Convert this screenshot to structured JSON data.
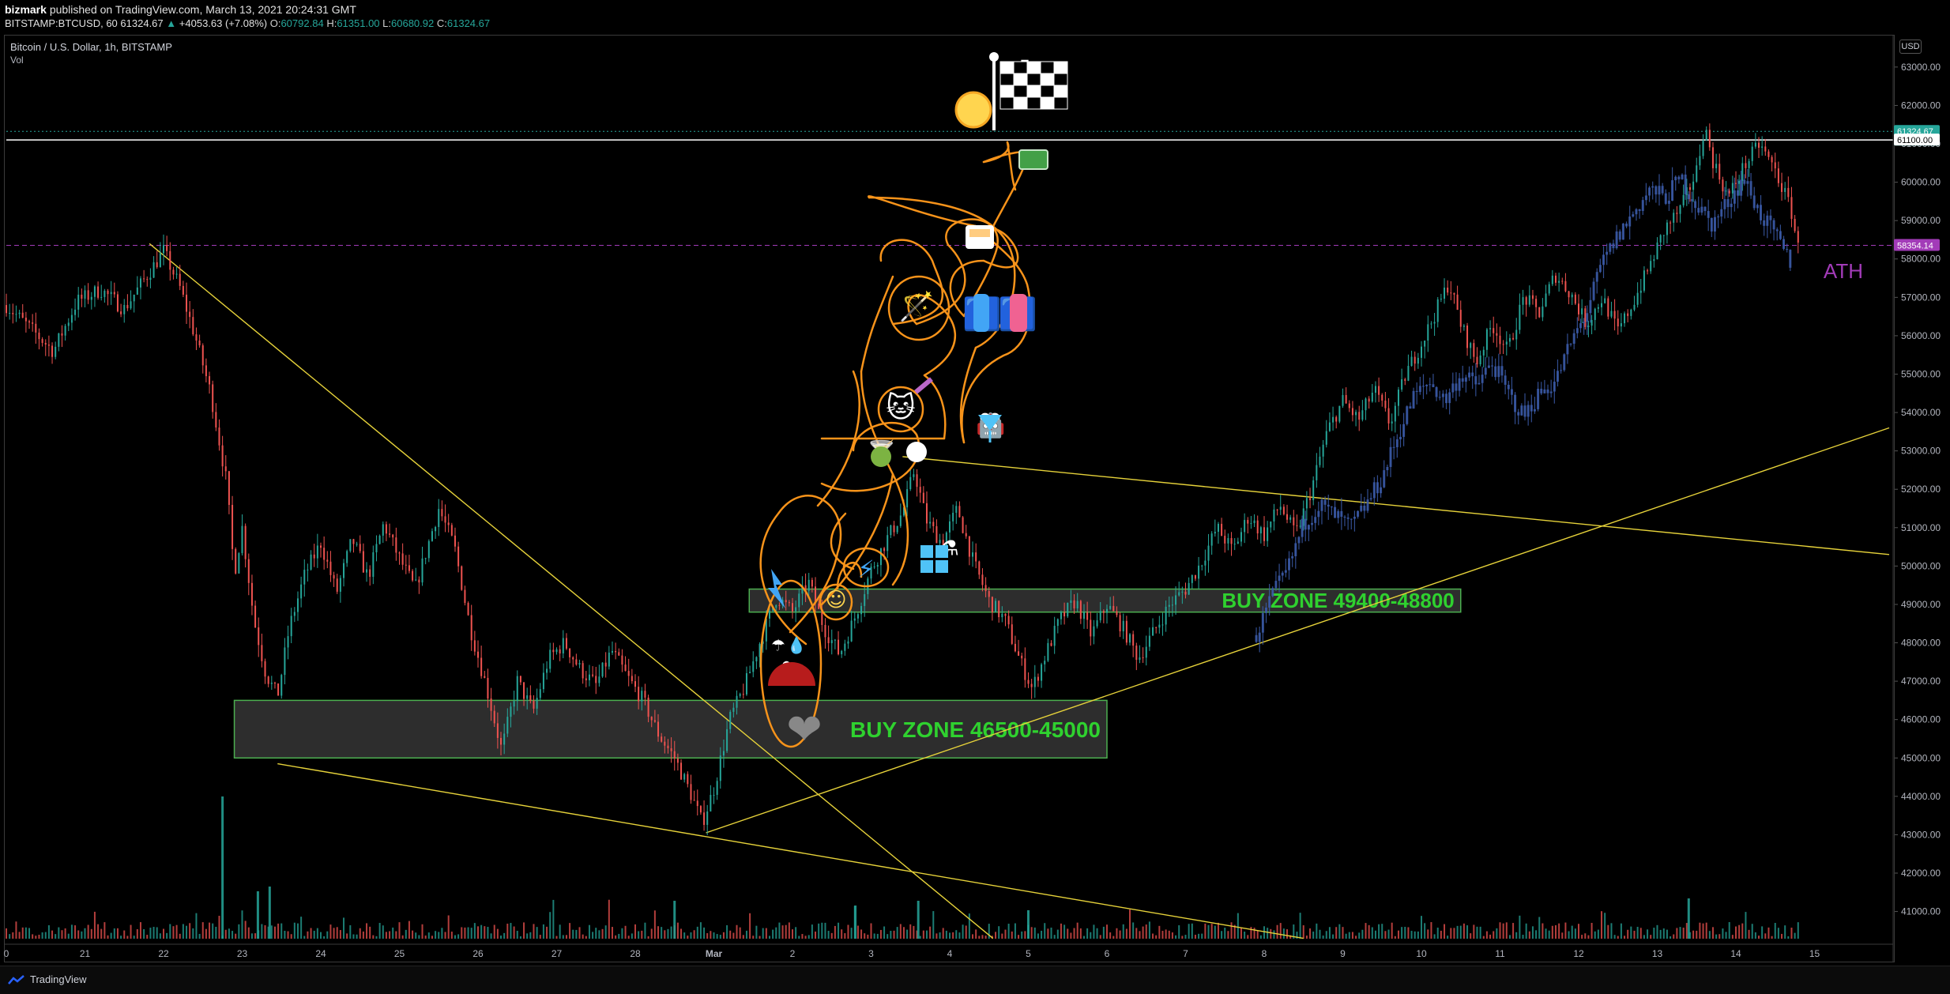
{
  "header": {
    "author": "bizmark",
    "published": "published on TradingView.com, March 13, 2021 20:24:31 GMT",
    "symbol": "BITSTAMP:BTCUSD, 60",
    "last": "61324.67",
    "change": "+4053.63 (+7.08%)",
    "o_label": "O:",
    "o": "60792.84",
    "h_label": "H:",
    "h": "61351.00",
    "l_label": "L:",
    "l": "60680.92",
    "c_label": "C:",
    "c": "61324.67"
  },
  "legend": {
    "title": "Bitcoin / U.S. Dollar, 1h, BITSTAMP",
    "vol": "Vol"
  },
  "currency": "USD",
  "footer": {
    "brand": "TradingView"
  },
  "colors": {
    "up": "#26a69a",
    "down": "#ef5350",
    "trend": "#e6d23a",
    "zone": "#4caf50",
    "zone_text": "#2fd12f",
    "orange": "#f7931a",
    "ath": "#a23bb8",
    "blue_overlay": "#3b5ba8"
  },
  "chart_data": {
    "type": "candlestick",
    "x_ticks": [
      "0",
      "21",
      "22",
      "23",
      "24",
      "25",
      "26",
      "27",
      "28",
      "Mar",
      "2",
      "3",
      "4",
      "5",
      "6",
      "7",
      "8",
      "9",
      "10",
      "11",
      "12",
      "13",
      "14",
      "15"
    ],
    "x_tick_days": [
      20,
      21,
      22,
      23,
      24,
      25,
      26,
      27,
      28,
      29,
      30,
      31,
      32,
      33,
      34,
      35,
      36,
      37,
      38,
      39,
      40,
      41,
      42,
      43
    ],
    "y_ticks": [
      41000,
      42000,
      43000,
      44000,
      45000,
      46000,
      47000,
      48000,
      49000,
      50000,
      51000,
      52000,
      53000,
      54000,
      55000,
      56000,
      57000,
      58000,
      59000,
      60000,
      61000,
      62000,
      63000
    ],
    "ylim": [
      40250,
      63800
    ],
    "xlim": [
      20,
      44
    ],
    "price_badges": [
      {
        "value": "61324.67",
        "sub": "35:31",
        "color": "#26a69a"
      },
      {
        "value": "61100.00",
        "color": "#ffffff"
      },
      {
        "value": "58354.14",
        "color": "#a23bb8"
      }
    ],
    "price_path": [
      [
        20.0,
        56800
      ],
      [
        20.3,
        56200
      ],
      [
        20.6,
        55600
      ],
      [
        20.9,
        56900
      ],
      [
        21.2,
        57200
      ],
      [
        21.5,
        56700
      ],
      [
        21.8,
        57600
      ],
      [
        22.0,
        58200
      ],
      [
        22.2,
        57300
      ],
      [
        22.4,
        56000
      ],
      [
        22.6,
        54500
      ],
      [
        22.8,
        52200
      ],
      [
        22.9,
        49800
      ],
      [
        23.0,
        51000
      ],
      [
        23.15,
        48600
      ],
      [
        23.3,
        47200
      ],
      [
        23.45,
        46600
      ],
      [
        23.6,
        48400
      ],
      [
        23.8,
        49800
      ],
      [
        24.0,
        50600
      ],
      [
        24.2,
        49300
      ],
      [
        24.4,
        50700
      ],
      [
        24.6,
        49700
      ],
      [
        24.8,
        51100
      ],
      [
        25.0,
        50200
      ],
      [
        25.2,
        49400
      ],
      [
        25.5,
        51500
      ],
      [
        25.7,
        50500
      ],
      [
        25.9,
        48400
      ],
      [
        26.1,
        46900
      ],
      [
        26.3,
        45200
      ],
      [
        26.5,
        47000
      ],
      [
        26.7,
        46200
      ],
      [
        26.9,
        47600
      ],
      [
        27.1,
        48000
      ],
      [
        27.3,
        47300
      ],
      [
        27.5,
        46900
      ],
      [
        27.7,
        47800
      ],
      [
        27.9,
        47100
      ],
      [
        28.1,
        46500
      ],
      [
        28.3,
        45600
      ],
      [
        28.5,
        45000
      ],
      [
        28.7,
        44100
      ],
      [
        28.85,
        43300
      ],
      [
        29.0,
        44200
      ],
      [
        29.2,
        46000
      ],
      [
        29.4,
        46900
      ],
      [
        29.6,
        48100
      ],
      [
        29.8,
        49200
      ],
      [
        30.0,
        48800
      ],
      [
        30.2,
        49600
      ],
      [
        30.4,
        48400
      ],
      [
        30.6,
        47700
      ],
      [
        30.8,
        48700
      ],
      [
        31.0,
        49900
      ],
      [
        31.2,
        50700
      ],
      [
        31.4,
        51400
      ],
      [
        31.55,
        52500
      ],
      [
        31.7,
        51200
      ],
      [
        31.9,
        50600
      ],
      [
        32.1,
        51500
      ],
      [
        32.3,
        50100
      ],
      [
        32.5,
        49100
      ],
      [
        32.7,
        48600
      ],
      [
        32.9,
        47500
      ],
      [
        33.05,
        46800
      ],
      [
        33.2,
        47600
      ],
      [
        33.4,
        48600
      ],
      [
        33.6,
        49100
      ],
      [
        33.8,
        48200
      ],
      [
        34.0,
        49000
      ],
      [
        34.2,
        48400
      ],
      [
        34.4,
        47600
      ],
      [
        34.6,
        48300
      ],
      [
        34.8,
        49000
      ],
      [
        35.0,
        49400
      ],
      [
        35.2,
        50100
      ],
      [
        35.4,
        51000
      ],
      [
        35.6,
        50400
      ],
      [
        35.8,
        51300
      ],
      [
        36.0,
        50800
      ],
      [
        36.2,
        51600
      ],
      [
        36.4,
        50800
      ],
      [
        36.6,
        52000
      ],
      [
        36.8,
        53500
      ],
      [
        37.0,
        54300
      ],
      [
        37.2,
        53800
      ],
      [
        37.4,
        54600
      ],
      [
        37.6,
        53700
      ],
      [
        37.8,
        55000
      ],
      [
        38.0,
        55800
      ],
      [
        38.2,
        56700
      ],
      [
        38.35,
        57400
      ],
      [
        38.5,
        56300
      ],
      [
        38.7,
        55300
      ],
      [
        38.9,
        56300
      ],
      [
        39.1,
        55600
      ],
      [
        39.3,
        57000
      ],
      [
        39.5,
        56600
      ],
      [
        39.7,
        57600
      ],
      [
        39.9,
        57100
      ],
      [
        40.1,
        56300
      ],
      [
        40.3,
        57000
      ],
      [
        40.5,
        56100
      ],
      [
        40.7,
        56900
      ],
      [
        40.9,
        57800
      ],
      [
        41.1,
        58800
      ],
      [
        41.3,
        59300
      ],
      [
        41.5,
        60300
      ],
      [
        41.6,
        61500
      ],
      [
        41.7,
        60600
      ],
      [
        41.9,
        59600
      ],
      [
        42.1,
        60400
      ],
      [
        42.3,
        61000
      ],
      [
        42.5,
        60300
      ],
      [
        42.7,
        59300
      ],
      [
        42.8,
        58200
      ]
    ],
    "overlay_path": [
      [
        35.9,
        48200
      ],
      [
        36.1,
        49200
      ],
      [
        36.3,
        49900
      ],
      [
        36.5,
        51100
      ],
      [
        36.7,
        51600
      ],
      [
        36.9,
        51300
      ],
      [
        37.1,
        51000
      ],
      [
        37.3,
        51600
      ],
      [
        37.5,
        52300
      ],
      [
        37.7,
        53400
      ],
      [
        37.9,
        54400
      ],
      [
        38.1,
        54800
      ],
      [
        38.3,
        54300
      ],
      [
        38.5,
        55000
      ],
      [
        38.7,
        54700
      ],
      [
        38.9,
        55300
      ],
      [
        39.1,
        54500
      ],
      [
        39.3,
        53900
      ],
      [
        39.5,
        54500
      ],
      [
        39.7,
        54800
      ],
      [
        39.9,
        55800
      ],
      [
        40.1,
        56600
      ],
      [
        40.3,
        57900
      ],
      [
        40.5,
        58600
      ],
      [
        40.7,
        59200
      ],
      [
        40.9,
        59800
      ],
      [
        41.1,
        59600
      ],
      [
        41.3,
        60100
      ],
      [
        41.5,
        59400
      ],
      [
        41.7,
        58900
      ],
      [
        41.9,
        59500
      ],
      [
        42.1,
        60100
      ],
      [
        42.3,
        59200
      ],
      [
        42.5,
        58600
      ],
      [
        42.7,
        57900
      ]
    ],
    "volume_spikes": [
      [
        22.75,
        6.0
      ],
      [
        23.2,
        2.0
      ],
      [
        23.35,
        2.2
      ],
      [
        28.5,
        1.6
      ],
      [
        30.8,
        1.4
      ],
      [
        31.6,
        1.6
      ],
      [
        33.0,
        1.2
      ],
      [
        41.4,
        1.7
      ]
    ],
    "buy_zones": [
      {
        "label": "BUY ZONE 46500-45000",
        "top": 46500,
        "bottom": 45000,
        "x0": 22.9,
        "x1": 34.0
      },
      {
        "label": "BUY ZONE 49400-48800",
        "top": 49400,
        "bottom": 48800,
        "x0": 29.45,
        "x1": 38.5
      }
    ],
    "trendlines": [
      {
        "x0": 21.82,
        "y0": 58400,
        "x1": 32.55,
        "y1": 40300
      },
      {
        "x0": 23.45,
        "y0": 44850,
        "x1": 36.5,
        "y1": 40300
      },
      {
        "x0": 28.9,
        "y0": 43050,
        "x1": 43.95,
        "y1": 53600
      },
      {
        "x0": 31.4,
        "y0": 52850,
        "x1": 43.95,
        "y1": 50300
      }
    ],
    "hlines": [
      {
        "value": 61100,
        "color": "#ffffff",
        "style": "solid"
      },
      {
        "value": 61324.67,
        "color": "#26a69a",
        "style": "dotted"
      },
      {
        "value": 58354.14,
        "color": "#a23bb8",
        "style": "dashed"
      }
    ],
    "ath_label": "ATH",
    "annotations": [
      "☀",
      "⚑",
      "💵",
      "☕",
      "🪄",
      "🚹",
      "🚺",
      "❤",
      "🐱",
      "🍸",
      "🤖",
      "",
      "⚡",
      "☺",
      "⚗",
      "❤",
      "⚓",
      "☂",
      "💧"
    ]
  }
}
